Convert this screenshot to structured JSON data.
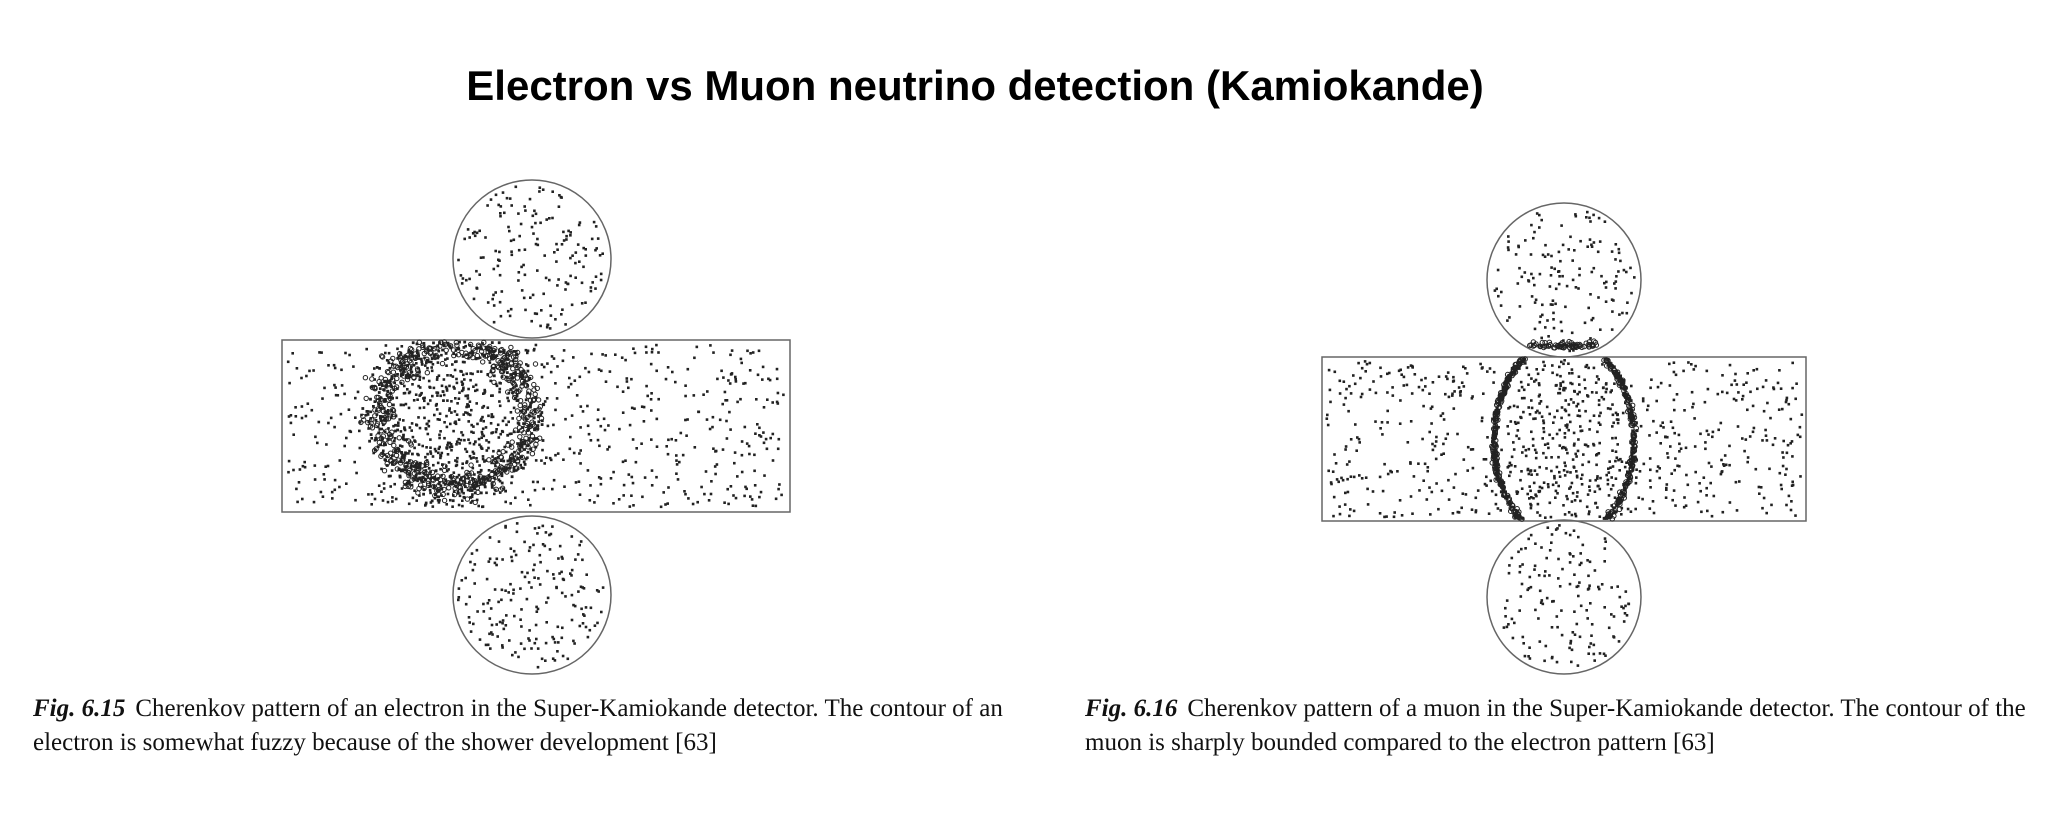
{
  "title": "Electron vs Muon neutrino detection (Kamiokande)",
  "figures": [
    {
      "label": "Fig. 6.15",
      "caption": "Cherenkov pattern of an electron in the Super-Kamiokande detector. The contour of an electron is somewhat fuzzy because of the shower development [63]",
      "ring": "fuzzy"
    },
    {
      "label": "Fig. 6.16",
      "caption": "Cherenkov pattern of a muon in the Super-Kamiokande detector. The contour of the muon is sharply bounded compared to the electron pattern [63]",
      "ring": "sharp"
    }
  ],
  "colors": {
    "stroke": "#666666",
    "hit": "#222222"
  }
}
